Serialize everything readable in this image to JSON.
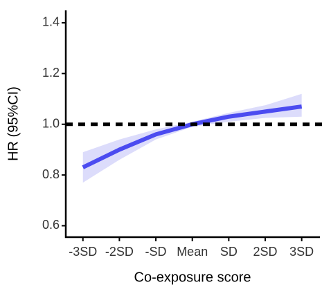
{
  "chart_data": {
    "type": "line",
    "x": [
      -3,
      -2,
      -1,
      0,
      1,
      2,
      3
    ],
    "values": [
      0.83,
      0.9,
      0.96,
      1.0,
      1.03,
      1.05,
      1.07
    ],
    "lower": [
      0.77,
      0.86,
      0.94,
      0.99,
      1.01,
      1.025,
      1.03
    ],
    "upper": [
      0.89,
      0.94,
      0.98,
      1.01,
      1.045,
      1.075,
      1.12
    ],
    "color": "#4b4bf0",
    "band_color": "#dcdcfb",
    "reference_line": {
      "value": 1,
      "color": "#000000"
    },
    "xlim": [
      -3.47,
      3.5
    ],
    "xticks": [
      {
        "value": -3,
        "label": "-3SD"
      },
      {
        "value": -2,
        "label": "-2SD"
      },
      {
        "value": -1,
        "label": "-SD"
      },
      {
        "value": 0,
        "label": "Mean"
      },
      {
        "value": 1,
        "label": "SD"
      },
      {
        "value": 2,
        "label": "2SD"
      },
      {
        "value": 3,
        "label": "3SD"
      }
    ],
    "ylim": [
      0.555,
      1.449
    ],
    "yticks": [
      0.6,
      0.8,
      {
        "value": 1,
        "label": "1.0"
      },
      1.2,
      1.4
    ],
    "xlabel": "Co-exposure score",
    "ylabel": "HR (95%CI)"
  }
}
